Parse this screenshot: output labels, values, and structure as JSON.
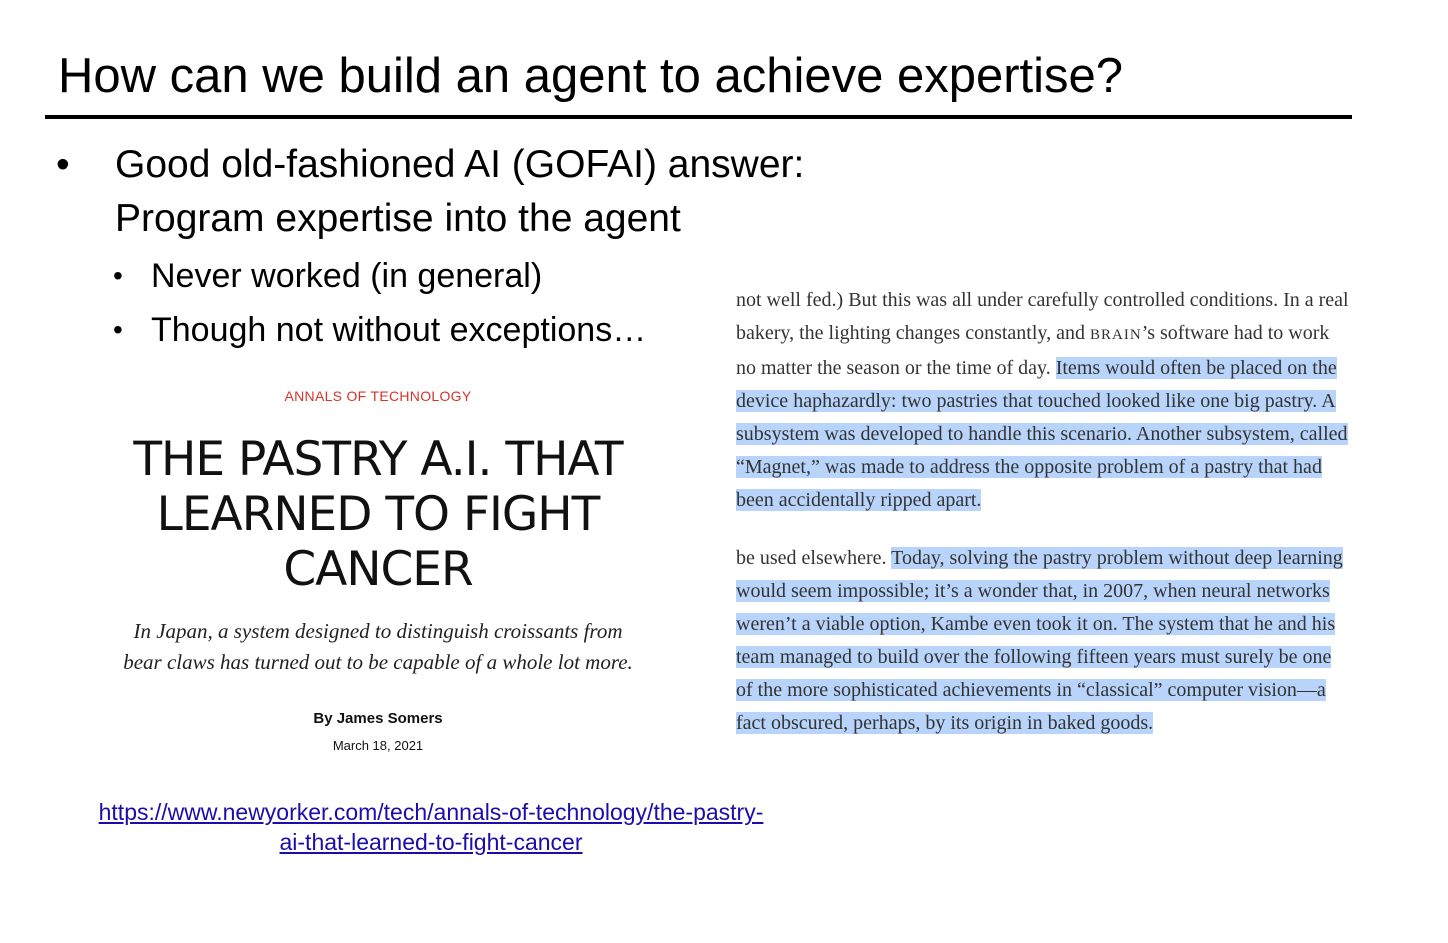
{
  "slide": {
    "title": "How can we build an agent to achieve expertise?",
    "bullets": {
      "main_line1": "Good old-fashioned AI (GOFAI) answer:",
      "main_line2": "Program expertise into the agent",
      "sub1": "Never worked (in general)",
      "sub2": "Though not without exceptions…"
    }
  },
  "article": {
    "section": "ANNALS OF TECHNOLOGY",
    "headline_line1": "THE PASTRY A.I. THAT",
    "headline_line2": "LEARNED TO FIGHT",
    "headline_line3": "CANCER",
    "dek_line1": "In Japan, a system designed to distinguish croissants from",
    "dek_line2": "bear claws has turned out to be capable of a whole lot more.",
    "byline": "By James Somers",
    "date": "March 18, 2021"
  },
  "link": {
    "line1": "https://www.newyorker.com/tech/annals-of-technology/the-pastry-",
    "line2": "ai-that-learned-to-fight-cancer"
  },
  "excerpt": {
    "p1": {
      "l1": "not well fed.) But this was all under carefully controlled conditions. In a real",
      "l2a": "bakery, the lighting changes constantly, and ",
      "l2b": "BRAIN",
      "l2c": "’s software had to work",
      "l3a": "no matter the season or the time of day. ",
      "l3b": "Items would often be placed on the",
      "l4": "device haphazardly: two pastries that touched looked like one big pastry. A",
      "l5": "subsystem was developed to handle this scenario. Another subsystem, called",
      "l6": "“Magnet,” was made to address the opposite problem of a pastry that had",
      "l7": "been accidentally ripped apart."
    },
    "p2": {
      "l1a": "be used elsewhere. ",
      "l1b": "Today, solving the pastry problem without deep learning",
      "l2": "would seem impossible; it’s a wonder that, in 2007, when neural networks",
      "l3": "weren’t a viable option, Kambe even took it on. The system that he and his",
      "l4": "team managed to build over the following fifteen years must surely be one",
      "l5": "of the more sophisticated achievements in “classical” computer vision—a",
      "l6": "fact obscured, perhaps, by its origin in baked goods."
    }
  }
}
